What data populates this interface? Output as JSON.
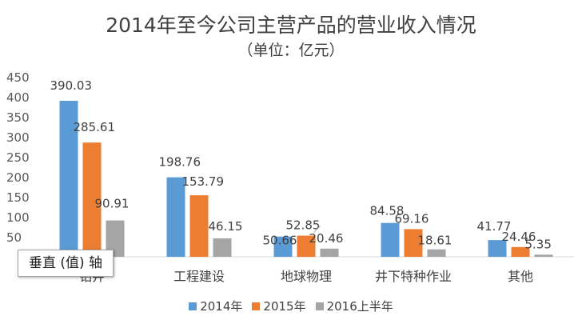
{
  "chart_data": {
    "type": "bar",
    "title": "2014年至今公司主营产品的营业收入情况",
    "subtitle": "（单位：亿元）",
    "categories": [
      "钻井",
      "工程建设",
      "地球物理",
      "井下特种作业",
      "其他"
    ],
    "series": [
      {
        "name": "2014年",
        "values": [
          390.03,
          198.76,
          50.66,
          84.58,
          41.77
        ],
        "labels": [
          "390.03",
          "198.76",
          "50.66",
          "84.58",
          "41.77"
        ],
        "color": "#5b9bd5"
      },
      {
        "name": "2015年",
        "values": [
          285.61,
          153.79,
          52.85,
          69.16,
          24.46
        ],
        "labels": [
          "285.61",
          "153.79",
          "52.85",
          "69.16",
          "24.46"
        ],
        "color": "#ed7d31"
      },
      {
        "name": "2016上半年",
        "values": [
          90.91,
          46.15,
          20.46,
          18.61,
          5.35
        ],
        "labels": [
          "90.91",
          "46.15",
          "20.46",
          "18.61",
          "5.35"
        ],
        "color": "#a5a5a5"
      }
    ],
    "ylim": [
      0,
      450
    ],
    "yticks": [
      50,
      100,
      150,
      200,
      250,
      300,
      350,
      400,
      450
    ],
    "grid": false,
    "legend_position": "bottom"
  },
  "tooltip": {
    "text": "垂直 (值) 轴"
  }
}
